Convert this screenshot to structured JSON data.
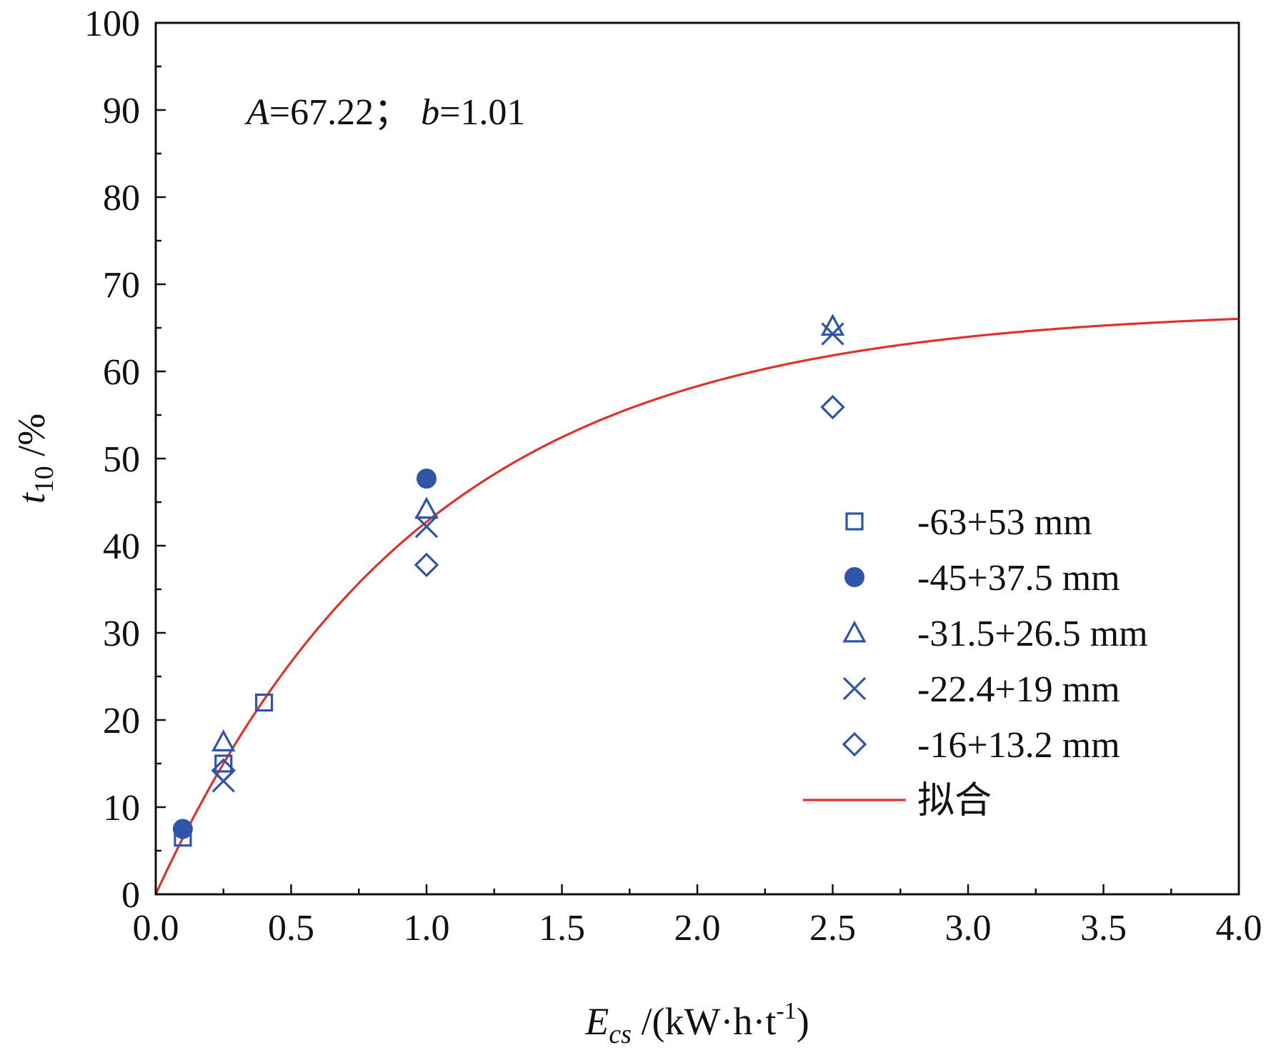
{
  "chart_data": {
    "type": "scatter",
    "xlim": [
      0,
      4.0
    ],
    "ylim": [
      0,
      100
    ],
    "x_ticks": [
      "0.0",
      "0.5",
      "1.0",
      "1.5",
      "2.0",
      "2.5",
      "3.0",
      "3.5",
      "4.0"
    ],
    "y_ticks": [
      "0",
      "10",
      "20",
      "30",
      "40",
      "50",
      "60",
      "70",
      "80",
      "90",
      "100"
    ],
    "xlabel": {
      "symbol": "E",
      "subscript": "cs",
      "unit_prefix": " /(kW·h·t",
      "unit_sup": "-1",
      "unit_suffix": ")"
    },
    "ylabel": {
      "symbol": "t",
      "subscript": "10",
      "unit": " /%"
    },
    "annotation": {
      "A_symbol": "A",
      "A_value": "=67.22；",
      "b_symbol": "b",
      "b_value": "=1.01"
    },
    "grid": false,
    "legend_position": "bottom-right",
    "series_color": "#2f55a8",
    "fit_color": "#e0322d",
    "series": [
      {
        "name": "-63+53 mm",
        "marker": "square",
        "points": [
          [
            0.1,
            6.5
          ],
          [
            0.25,
            15.0
          ],
          [
            0.4,
            22.0
          ]
        ]
      },
      {
        "name": "-45+37.5 mm",
        "marker": "circle",
        "points": [
          [
            0.1,
            7.5
          ],
          [
            1.0,
            47.7
          ]
        ]
      },
      {
        "name": "-31.5+26.5 mm",
        "marker": "triangle",
        "points": [
          [
            0.25,
            17.5
          ],
          [
            1.0,
            44.2
          ],
          [
            2.5,
            65.2
          ]
        ]
      },
      {
        "name": "-22.4+19 mm",
        "marker": "x",
        "points": [
          [
            0.25,
            13.0
          ],
          [
            1.0,
            42.2
          ],
          [
            2.5,
            64.3
          ]
        ]
      },
      {
        "name": "-16+13.2 mm",
        "marker": "diamond",
        "points": [
          [
            0.25,
            14.2
          ],
          [
            1.0,
            37.8
          ],
          [
            2.5,
            55.9
          ]
        ]
      }
    ],
    "fit": {
      "name": "拟合",
      "model": "A*(1-exp(-b*x))",
      "A": 67.22,
      "b": 1.01
    }
  }
}
